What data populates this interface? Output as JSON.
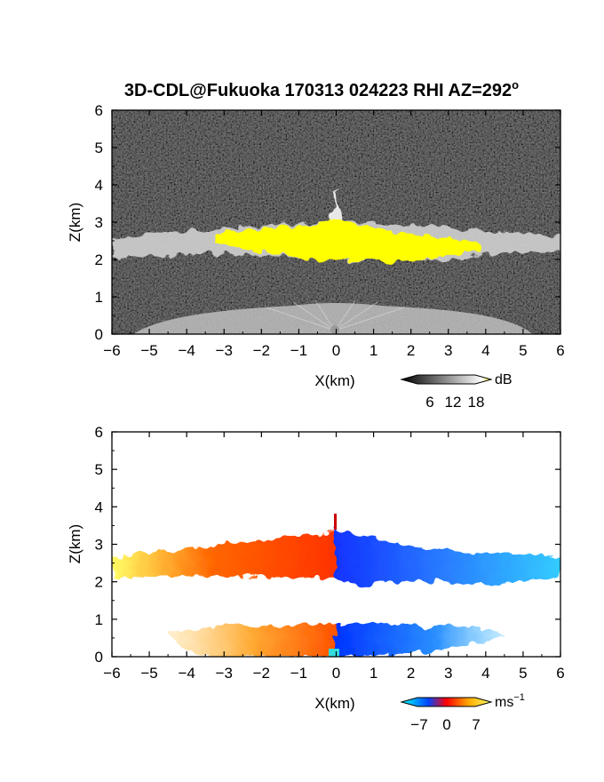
{
  "title": "3D-CDL@Fukuoka 170313 024223 RHI AZ=292",
  "title_degree_symbol": "o",
  "chart_data": [
    {
      "type": "heatmap",
      "name": "intensity",
      "xlabel": "X(km)",
      "ylabel": "Z(km)",
      "xlim": [
        -6,
        6
      ],
      "ylim": [
        0,
        6
      ],
      "xticks": [
        -6,
        -5,
        -4,
        -3,
        -2,
        -1,
        0,
        1,
        2,
        3,
        4,
        5,
        6
      ],
      "yticks": [
        0,
        1,
        2,
        3,
        4,
        5,
        6
      ],
      "background_color": "#2b2b2b",
      "colorbar": {
        "unit": "dB",
        "ticks": [
          "6",
          "12",
          "18"
        ],
        "range": [
          0,
          20
        ],
        "colors": [
          "#000000",
          "#ffffff",
          "#ffff00"
        ]
      },
      "features": [
        {
          "label": "cloud layer",
          "x_range": [
            -6,
            6
          ],
          "z_range": [
            2.0,
            3.0
          ],
          "color": "#d0d0d0"
        },
        {
          "label": "strong return (>18 dB)",
          "x_range": [
            -3.2,
            3.8
          ],
          "z_range": [
            2.0,
            3.0
          ],
          "color": "#ffff00"
        },
        {
          "label": "near-ground return",
          "x_range": [
            -6,
            6
          ],
          "z_range": [
            0,
            0.8
          ],
          "color": "#bdbdbd"
        }
      ]
    },
    {
      "type": "heatmap",
      "name": "doppler velocity",
      "xlabel": "X(km)",
      "ylabel": "Z(km)",
      "xlim": [
        -6,
        6
      ],
      "ylim": [
        0,
        6
      ],
      "xticks": [
        -6,
        -5,
        -4,
        -3,
        -2,
        -1,
        0,
        1,
        2,
        3,
        4,
        5,
        6
      ],
      "yticks": [
        0,
        1,
        2,
        3,
        4,
        5,
        6
      ],
      "background_color": "#ffffff",
      "colorbar": {
        "unit": "ms",
        "unit_exponent": "−1",
        "ticks": [
          "−7",
          "0",
          "7"
        ],
        "range": [
          -7,
          7
        ],
        "colors": [
          "#00ffff",
          "#0044ff",
          "#ff0000",
          "#ffaa00",
          "#ffff66"
        ]
      },
      "features": [
        {
          "label": "approaching layer",
          "x_range": [
            -6,
            0
          ],
          "z_range": [
            2.0,
            3.0
          ],
          "velocity": 5
        },
        {
          "label": "receding layer",
          "x_range": [
            0,
            6
          ],
          "z_range": [
            2.0,
            3.2
          ],
          "velocity": -5
        },
        {
          "label": "approaching low layer",
          "x_range": [
            -4.4,
            0
          ],
          "z_range": [
            0,
            0.8
          ],
          "velocity": 4
        },
        {
          "label": "receding low layer",
          "x_range": [
            0,
            4.5
          ],
          "z_range": [
            0,
            0.8
          ],
          "velocity": -4
        }
      ]
    }
  ]
}
